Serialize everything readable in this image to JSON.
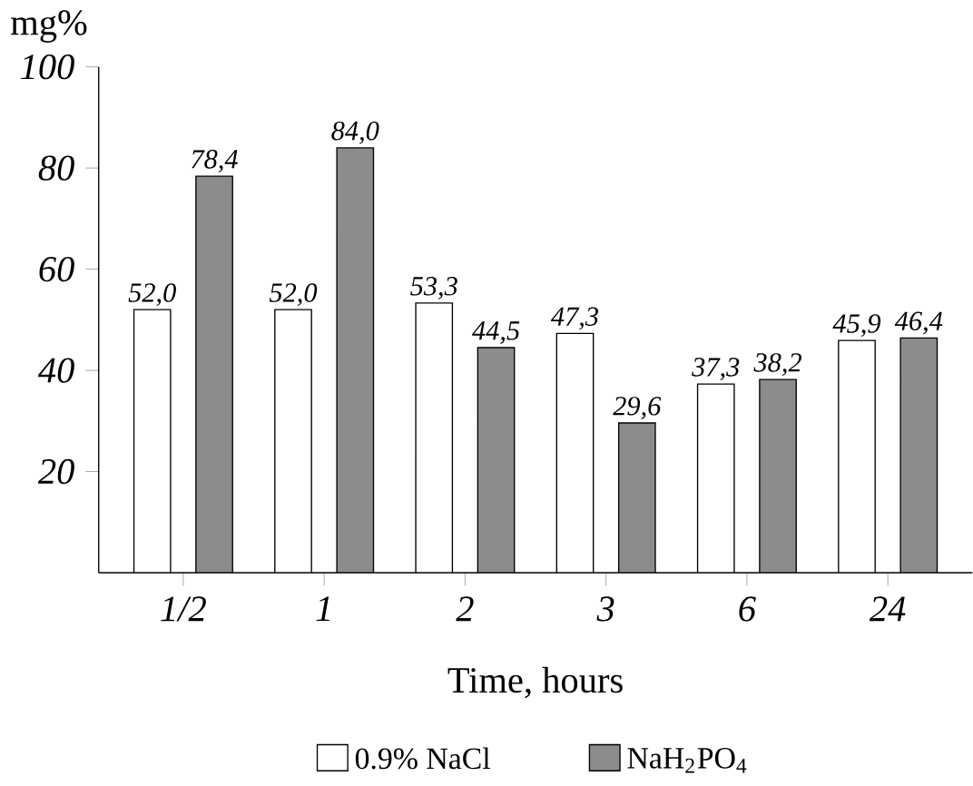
{
  "chart_data": {
    "type": "bar",
    "ylabel": "mg%",
    "xlabel": "Time, hours",
    "categories": [
      "1/2",
      "1",
      "2",
      "3",
      "6",
      "24"
    ],
    "ylim": [
      0,
      100
    ],
    "yticks": [
      20,
      40,
      60,
      80,
      100
    ],
    "legend": "bottom",
    "series": [
      {
        "name": "0.9% NaCl",
        "color": "#ffffff",
        "values": [
          52.0,
          52.0,
          53.3,
          47.3,
          37.3,
          45.9
        ],
        "value_labels": [
          "52,0",
          "52,0",
          "53,3",
          "47,3",
          "37,3",
          "45,9"
        ]
      },
      {
        "name": "NaH$_{2}$PO$_{4}$",
        "color": "#8c8c8c",
        "values": [
          78.4,
          84.0,
          44.5,
          29.6,
          38.2,
          46.4
        ],
        "value_labels": [
          "78,4",
          "84,0",
          "44,5",
          "29,6",
          "38,2",
          "46,4"
        ]
      }
    ]
  }
}
